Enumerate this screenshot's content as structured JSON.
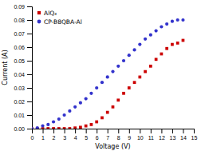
{
  "chart_data": {
    "type": "scatter",
    "xlabel": "Voltage (V)",
    "ylabel": "Current (A)",
    "xlim": [
      0,
      15
    ],
    "ylim": [
      0,
      0.09
    ],
    "xticks": [
      0,
      1,
      2,
      3,
      4,
      5,
      6,
      7,
      8,
      9,
      10,
      11,
      12,
      13,
      14,
      15
    ],
    "yticks": [
      {
        "value": 0,
        "label": "0.00"
      },
      0.01,
      0.02,
      0.03,
      0.04,
      0.05,
      0.06,
      0.07,
      0.08,
      0.09
    ],
    "x": [
      0,
      0.5,
      1,
      1.5,
      2,
      2.5,
      3,
      3.5,
      4,
      4.5,
      5,
      5.5,
      6,
      6.5,
      7,
      7.5,
      8,
      8.5,
      9,
      9.5,
      10,
      10.5,
      11,
      11.5,
      12,
      12.5,
      13,
      13.5,
      14
    ],
    "series": [
      {
        "name": "AlQ₃",
        "color": "#cc0000",
        "marker": "square",
        "values": [
          0,
          0,
          0,
          0,
          0,
          0,
          0,
          0,
          0.0005,
          0.001,
          0.002,
          0.003,
          0.005,
          0.008,
          0.012,
          0.016,
          0.021,
          0.026,
          0.03,
          0.034,
          0.038,
          0.042,
          0.046,
          0.051,
          0.055,
          0.059,
          0.062,
          0.063,
          0.065
        ]
      },
      {
        "name": "CP-B8QBA-Al",
        "color": "#3333cc",
        "marker": "circle",
        "values": [
          0,
          0.0005,
          0.002,
          0.003,
          0.005,
          0.007,
          0.01,
          0.013,
          0.016,
          0.019,
          0.022,
          0.026,
          0.03,
          0.034,
          0.038,
          0.042,
          0.046,
          0.05,
          0.054,
          0.058,
          0.062,
          0.066,
          0.069,
          0.072,
          0.075,
          0.077,
          0.079,
          0.08,
          0.08
        ]
      }
    ],
    "grid": false,
    "legend": "upper left"
  }
}
